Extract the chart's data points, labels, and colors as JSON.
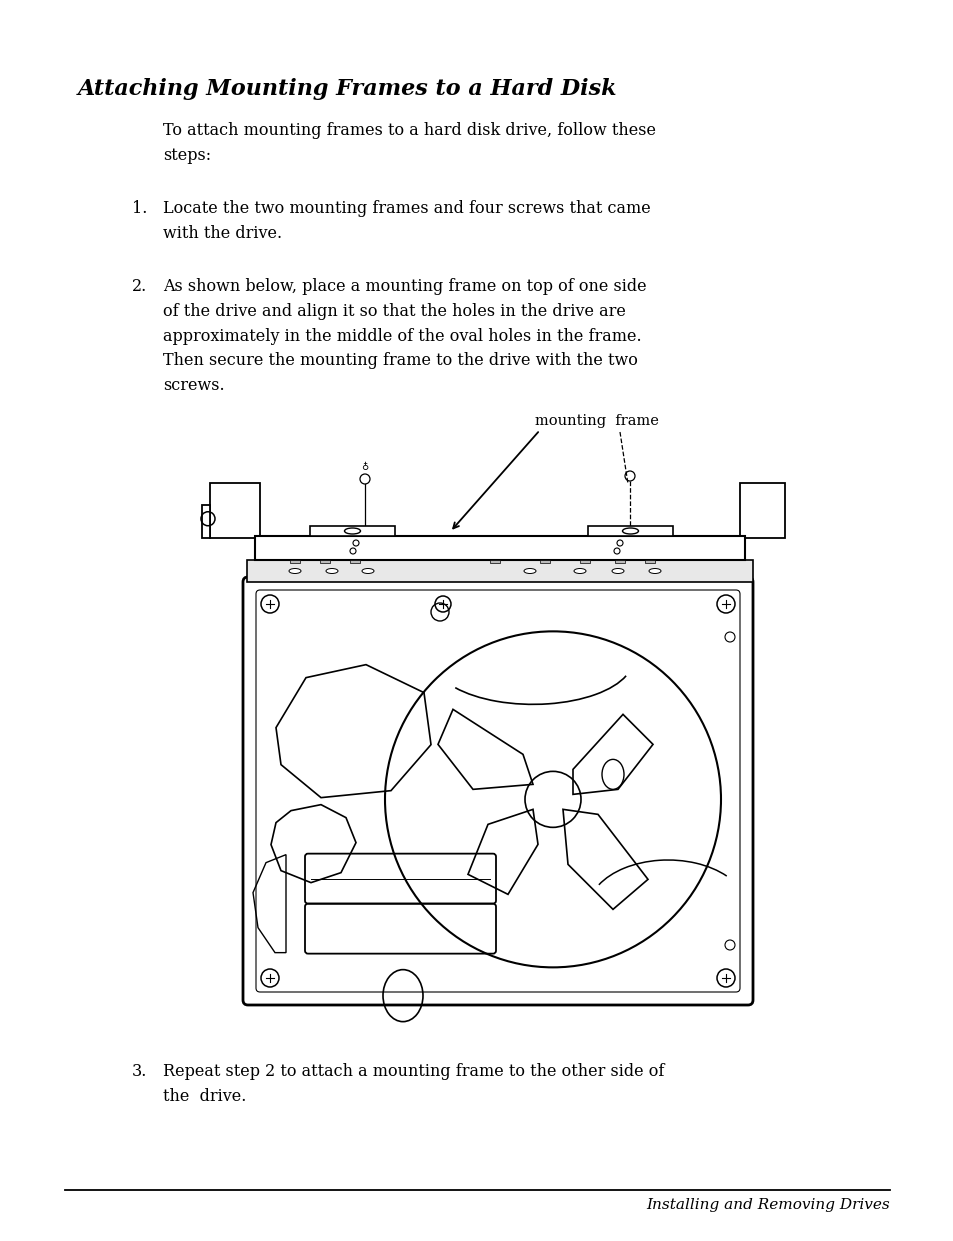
{
  "title": "Attaching Mounting Frames to a Hard Disk",
  "bg_color": "#ffffff",
  "intro_text": "To attach mounting frames to a hard disk drive, follow these\nsteps:",
  "step1_num": "1.",
  "step1_text": "Locate the two mounting frames and four screws that came\nwith the drive.",
  "step2_num": "2.",
  "step2_text": "As shown below, place a mounting frame on top of one side\nof the drive and align it so that the holes in the drive are\napproximately in the middle of the oval holes in the frame.\nThen secure the mounting frame to the drive with the two\nscrews.",
  "step3_num": "3.",
  "step3_text": "Repeat step 2 to attach a mounting frame to the other side of\nthe  drive.",
  "label_mounting_frame": "mounting  frame",
  "footer_text": "Installing and Removing Drives"
}
